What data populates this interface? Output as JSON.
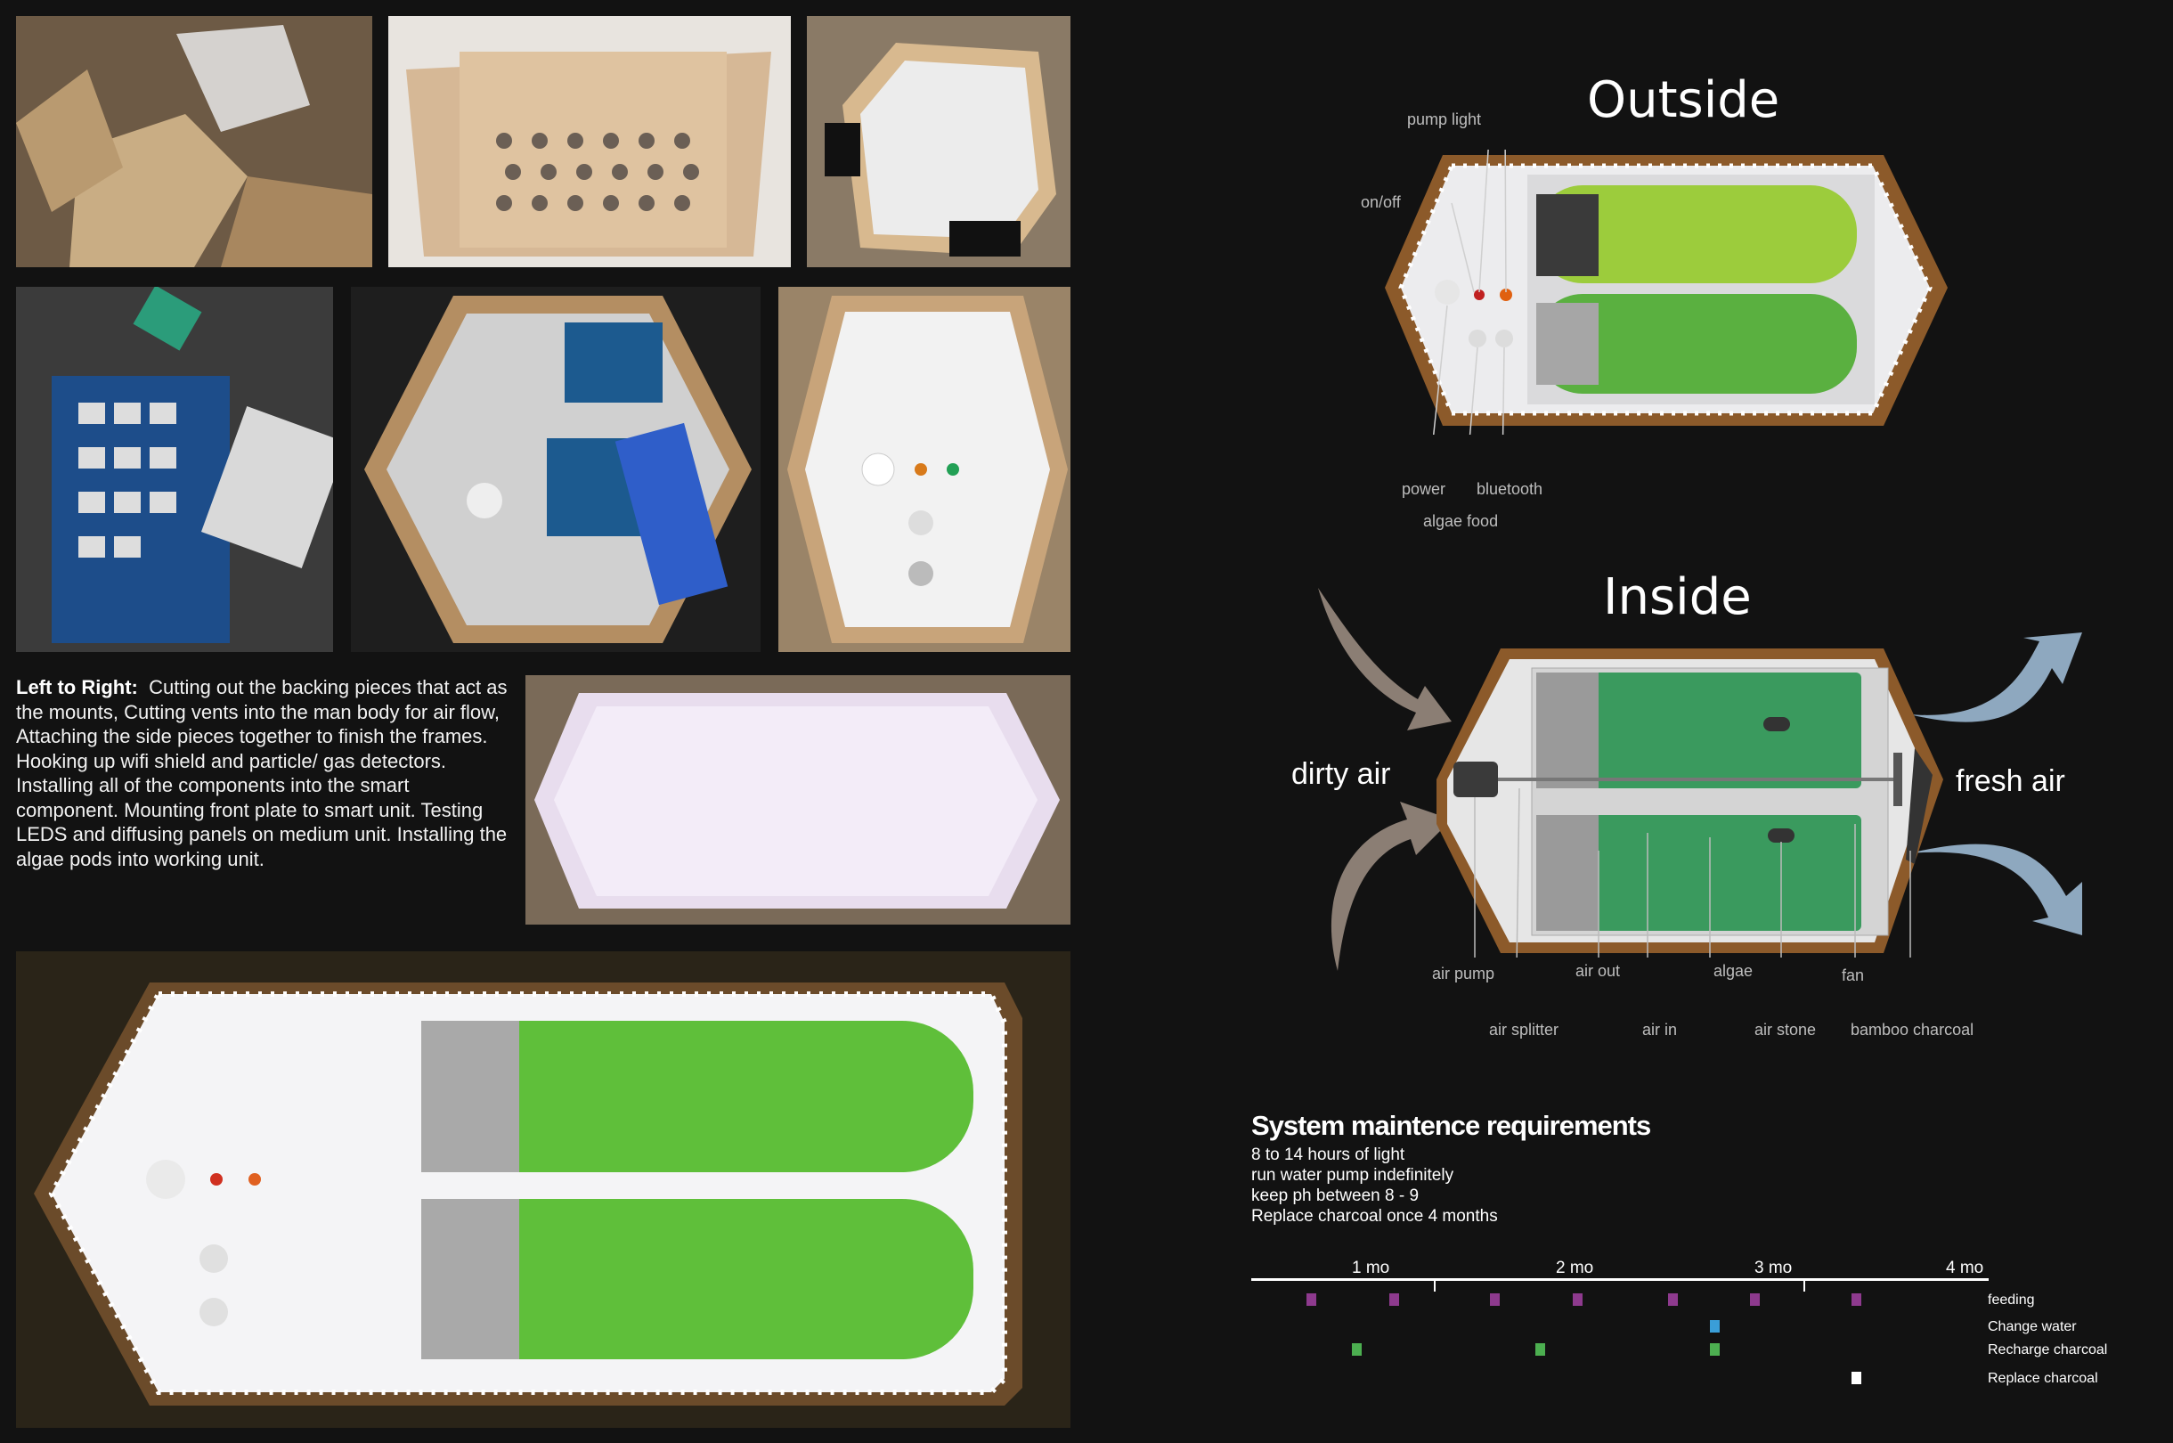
{
  "description": {
    "lead": "Left to Right:",
    "body": "Cutting out the backing pieces that act as the mounts, Cutting vents into the man body for air flow, Attaching the side pieces together to finish the frames. Hooking up wifi shield and particle/ gas detectors. Installing all of the components into the smart component. Mounting front plate to smart unit. Testing LEDS and diffusing panels on medium unit. Installing the algae pods into working unit."
  },
  "outside": {
    "title": "Outside",
    "labels": {
      "pump_light": "pump light",
      "on_off": "on/off",
      "power": "power",
      "bluetooth": "bluetooth",
      "algae_food": "algae food"
    }
  },
  "inside": {
    "title": "Inside",
    "labels": {
      "dirty_air": "dirty air",
      "fresh_air": "fresh air",
      "air_pump": "air pump",
      "air_out": "air out",
      "algae": "algae",
      "fan": "fan",
      "air_splitter": "air splitter",
      "air_in": "air in",
      "air_stone": "air stone",
      "bamboo_charcoal": "bamboo charcoal"
    }
  },
  "maintenance": {
    "title": "System maintence requirements",
    "requirements": [
      "8 to 14 hours of light",
      "run water pump indefinitely",
      "keep ph between 8 - 9",
      "Replace charcoal once 4 months"
    ],
    "timeline": {
      "months": [
        "1 mo",
        "2 mo",
        "3 mo",
        "4 mo"
      ],
      "tasks": [
        {
          "name": "feeding",
          "color": "#8e3a8e",
          "at_months": [
            0.3,
            0.75,
            1.3,
            1.75,
            2.27,
            2.72,
            3.27
          ]
        },
        {
          "name": "Change water",
          "color": "#3a9ed8",
          "at_months": [
            2.5
          ]
        },
        {
          "name": "Recharge charcoal",
          "color": "#4caf50",
          "at_months": [
            0.55,
            1.55,
            2.5
          ]
        },
        {
          "name": "Replace charcoal",
          "color": "#ffffff",
          "at_months": [
            3.27
          ]
        }
      ]
    }
  }
}
